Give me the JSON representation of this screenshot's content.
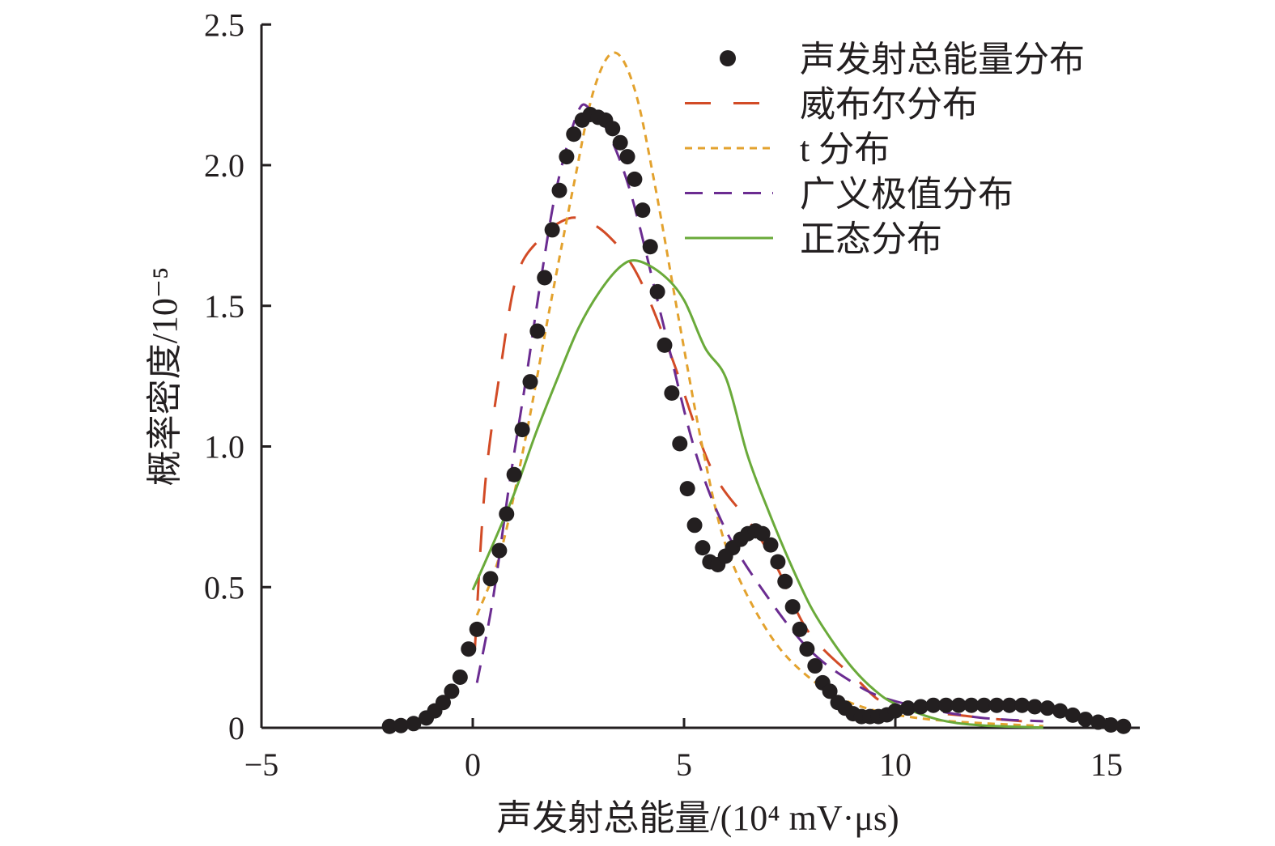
{
  "chart_data": {
    "type": "line",
    "title": "",
    "xlabel": "声发射总能量/(10⁴ mV·μs)",
    "ylabel": "概率密度/10⁻⁵",
    "xlim": [
      -5,
      15.5
    ],
    "ylim": [
      0,
      2.5
    ],
    "xticks": [
      -5,
      0,
      5,
      10,
      15
    ],
    "xtick_labels": [
      "−5",
      "0",
      "5",
      "10",
      "15"
    ],
    "yticks": [
      0,
      0.5,
      1.0,
      1.5,
      2.0,
      2.5
    ],
    "ytick_labels": [
      "0",
      "0.5",
      "1.0",
      "1.5",
      "2.0",
      "2.5"
    ],
    "grid": false,
    "legend_position": "top-right",
    "series": [
      {
        "name": "声发射总能量分布",
        "style": "scatter",
        "color": "#231f20",
        "x": [
          -1.97,
          -1.7,
          -1.4,
          -1.1,
          -0.9,
          -0.7,
          -0.5,
          -0.3,
          -0.1,
          0.1,
          0.42,
          0.63,
          0.8,
          0.98,
          1.17,
          1.36,
          1.53,
          1.7,
          1.88,
          2.05,
          2.22,
          2.39,
          2.59,
          2.78,
          2.97,
          3.14,
          3.31,
          3.49,
          3.66,
          3.83,
          4.02,
          4.2,
          4.37,
          4.54,
          4.71,
          4.9,
          5.08,
          5.25,
          5.44,
          5.61,
          5.8,
          5.98,
          6.15,
          6.34,
          6.51,
          6.69,
          6.86,
          7.05,
          7.22,
          7.39,
          7.57,
          7.74,
          7.91,
          8.1,
          8.28,
          8.45,
          8.64,
          8.81,
          9.0,
          9.2,
          9.4,
          9.6,
          9.8,
          10.0,
          10.3,
          10.6,
          10.9,
          11.2,
          11.5,
          11.8,
          12.1,
          12.4,
          12.7,
          13.0,
          13.3,
          13.6,
          13.9,
          14.2,
          14.5,
          14.8,
          15.1,
          15.4
        ],
        "y": [
          0.005,
          0.008,
          0.015,
          0.035,
          0.06,
          0.09,
          0.13,
          0.18,
          0.28,
          0.35,
          0.53,
          0.63,
          0.76,
          0.9,
          1.06,
          1.23,
          1.41,
          1.6,
          1.77,
          1.91,
          2.03,
          2.11,
          2.16,
          2.18,
          2.17,
          2.16,
          2.13,
          2.08,
          2.03,
          1.95,
          1.84,
          1.71,
          1.55,
          1.36,
          1.19,
          1.01,
          0.85,
          0.72,
          0.64,
          0.59,
          0.58,
          0.61,
          0.64,
          0.67,
          0.69,
          0.7,
          0.69,
          0.65,
          0.59,
          0.52,
          0.43,
          0.35,
          0.28,
          0.22,
          0.16,
          0.13,
          0.09,
          0.07,
          0.05,
          0.04,
          0.04,
          0.04,
          0.046,
          0.06,
          0.07,
          0.075,
          0.08,
          0.08,
          0.08,
          0.08,
          0.08,
          0.08,
          0.08,
          0.08,
          0.075,
          0.07,
          0.06,
          0.045,
          0.03,
          0.02,
          0.01,
          0.005
        ]
      },
      {
        "name": "威布尔分布",
        "style": "long-dash",
        "color": "#d24b26",
        "x": [
          0.05,
          0.29,
          0.67,
          1.05,
          1.6,
          2.1,
          2.55,
          3.2,
          3.9,
          4.7,
          5.65,
          6.6,
          7.2,
          7.95,
          9.1,
          9.9,
          11.8,
          13.5
        ],
        "y": [
          0.28,
          0.86,
          1.29,
          1.61,
          1.74,
          1.8,
          1.81,
          1.75,
          1.61,
          1.32,
          0.92,
          0.72,
          0.57,
          0.34,
          0.17,
          0.08,
          0.04,
          0.017
        ]
      },
      {
        "name": "t 分布",
        "style": "dotted",
        "color": "#e3a22e",
        "x": [
          0.1,
          0.67,
          1.25,
          1.82,
          2.39,
          2.87,
          3.35,
          3.83,
          4.31,
          4.89,
          5.46,
          6.03,
          6.99,
          7.95,
          9.1,
          10.8,
          13.5
        ],
        "y": [
          0.4,
          0.63,
          1.03,
          1.49,
          1.93,
          2.27,
          2.4,
          2.27,
          1.93,
          1.44,
          0.98,
          0.63,
          0.34,
          0.18,
          0.08,
          0.03,
          0.006
        ]
      },
      {
        "name": "广义极值分布",
        "style": "dash",
        "color": "#6b2c91",
        "x": [
          0.1,
          0.48,
          0.86,
          1.25,
          1.63,
          2.0,
          2.49,
          2.78,
          3.16,
          3.74,
          4.5,
          5.27,
          6.03,
          7.0,
          7.95,
          8.9,
          9.87,
          11.8,
          13.5
        ],
        "y": [
          0.16,
          0.46,
          0.86,
          1.23,
          1.61,
          1.93,
          2.19,
          2.2,
          2.13,
          1.9,
          1.44,
          0.98,
          0.69,
          0.46,
          0.28,
          0.17,
          0.1,
          0.04,
          0.023
        ]
      },
      {
        "name": "正态分布",
        "style": "solid",
        "color": "#6aaa3a",
        "x": [
          0,
          0.5,
          1,
          1.5,
          2,
          2.5,
          3,
          3.5,
          3.9,
          4.5,
          5,
          5.5,
          6,
          6.5,
          7,
          7.5,
          8,
          8.5,
          9,
          9.5,
          10,
          11,
          12,
          13.5
        ],
        "y": [
          0.49,
          0.66,
          0.84,
          1.05,
          1.24,
          1.42,
          1.55,
          1.64,
          1.66,
          1.61,
          1.52,
          1.35,
          1.24,
          0.97,
          0.77,
          0.59,
          0.43,
          0.31,
          0.21,
          0.135,
          0.085,
          0.03,
          0.009,
          0.001
        ]
      }
    ]
  }
}
